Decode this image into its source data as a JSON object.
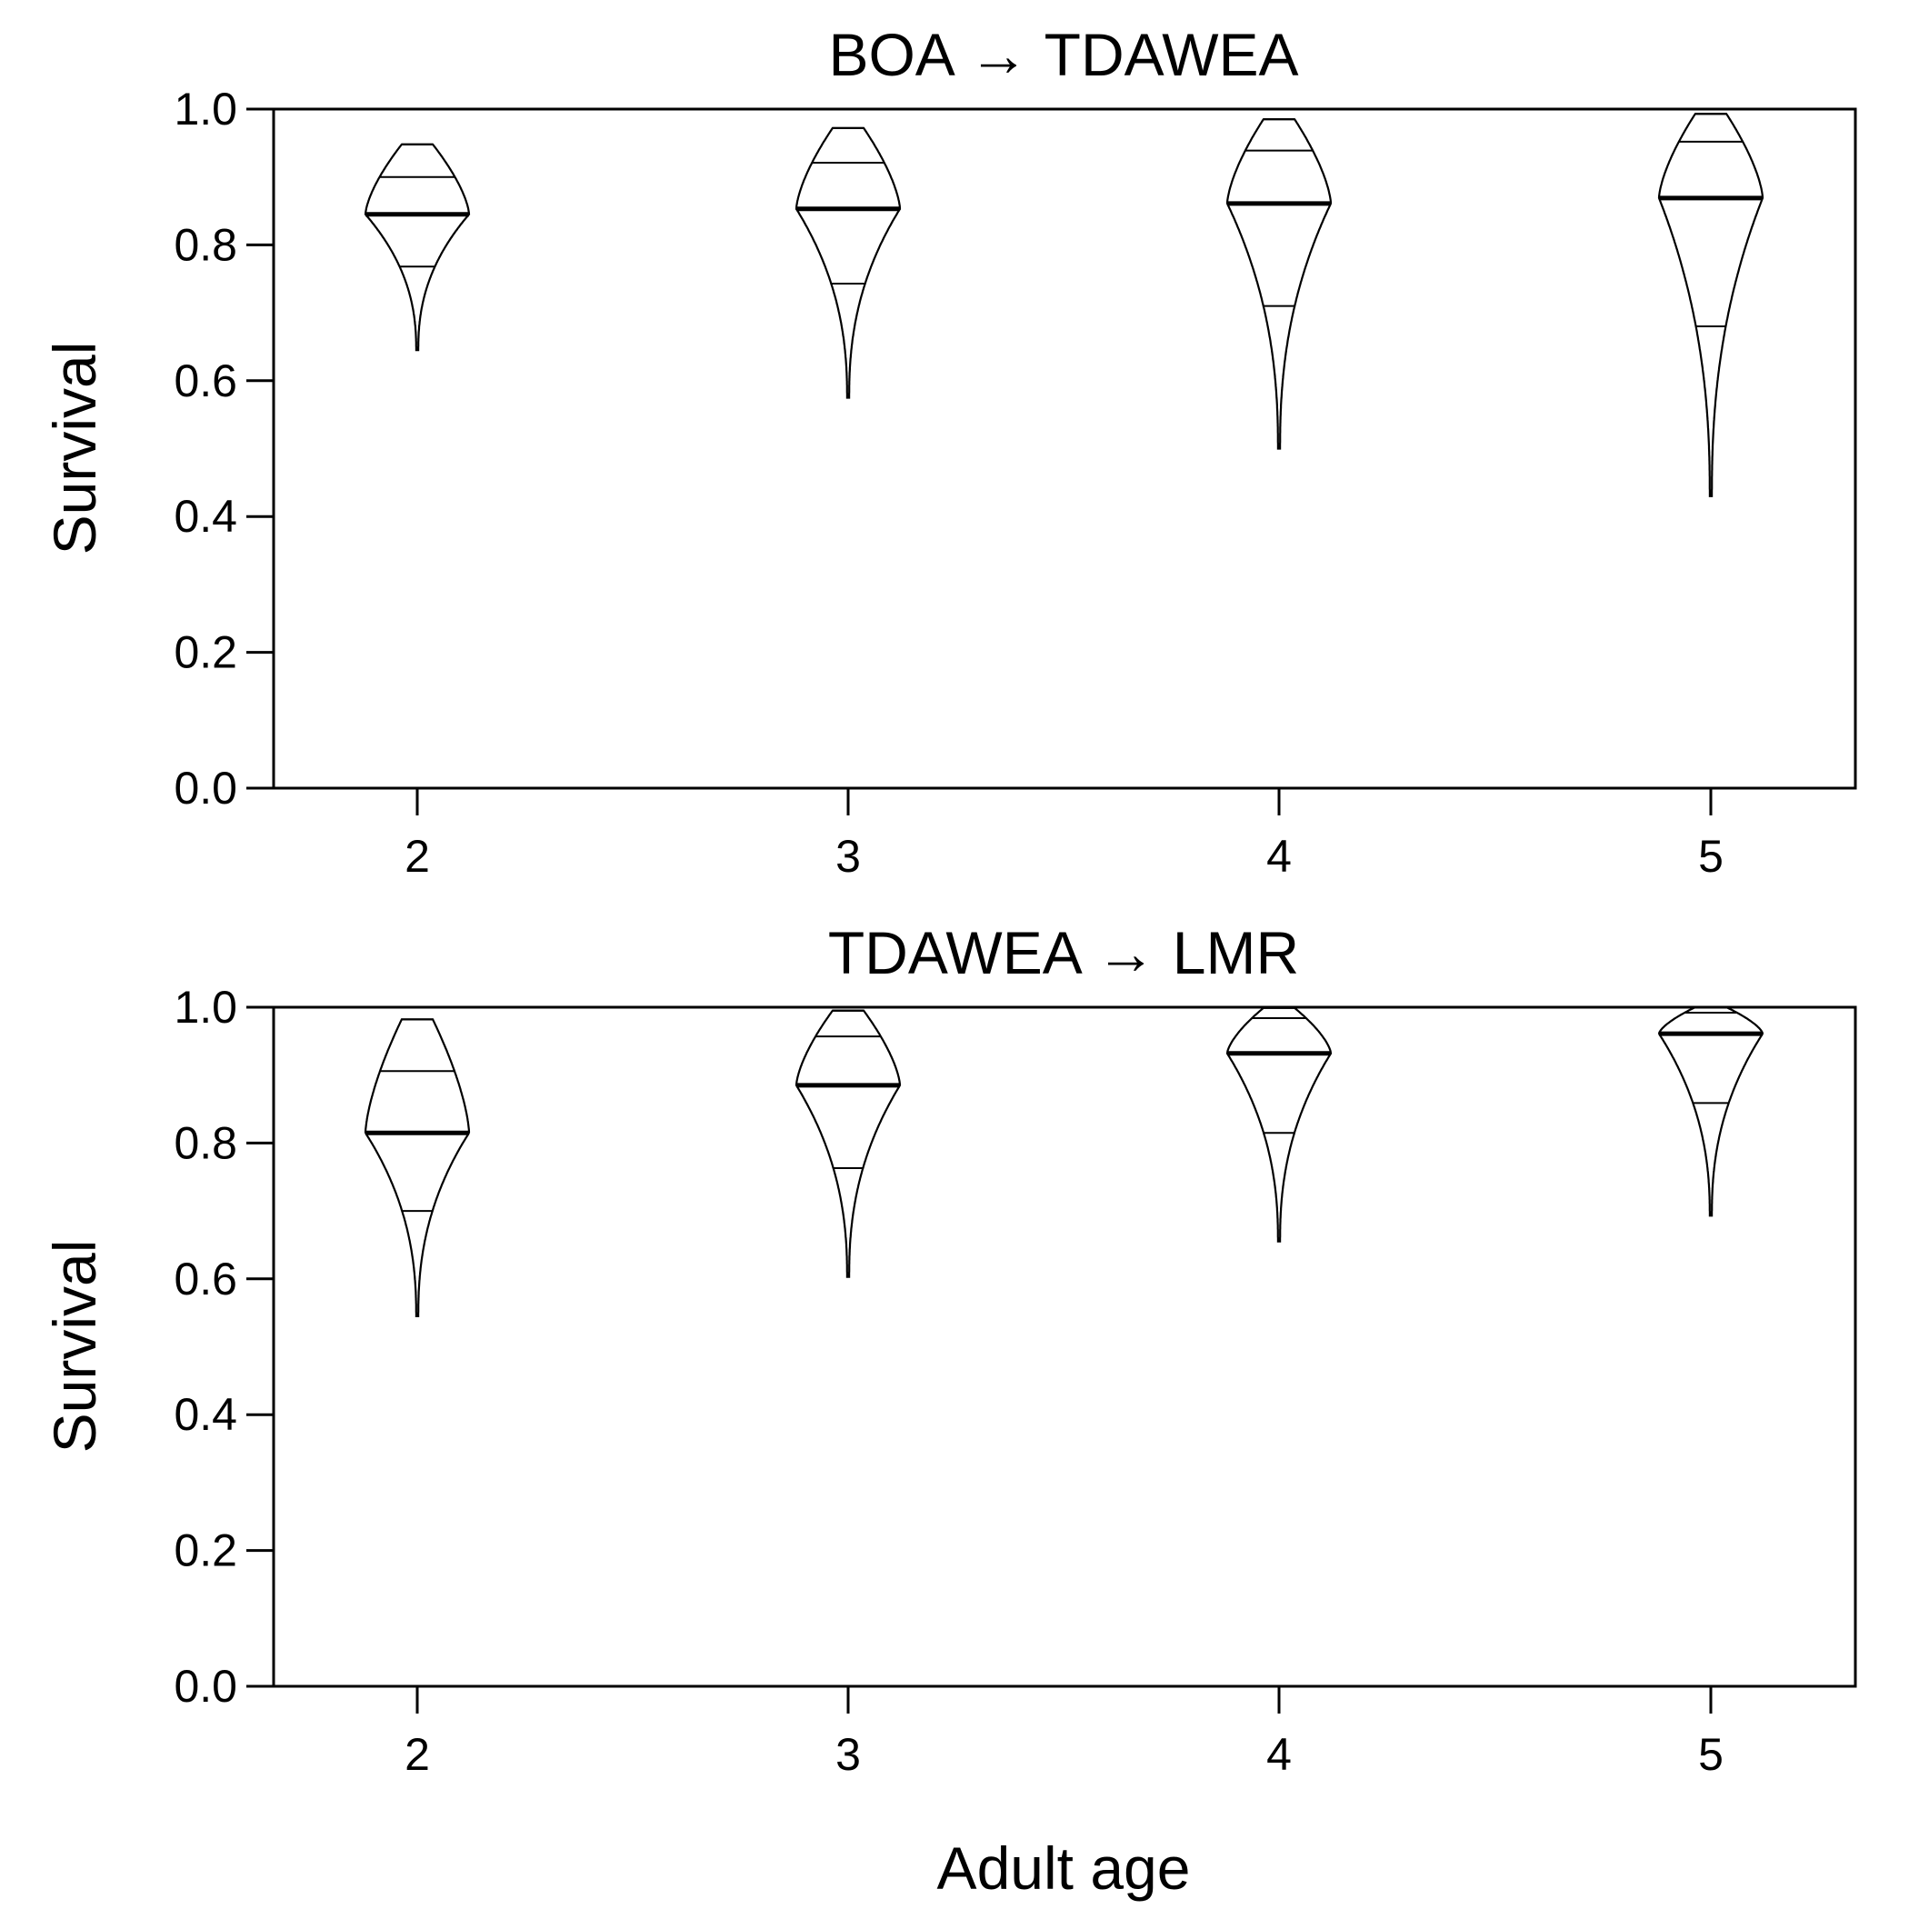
{
  "chart_data": [
    {
      "type": "violin",
      "title": "BOA → TDAWEA",
      "xlabel": "",
      "ylabel": "Survival",
      "ylim": [
        0,
        1
      ],
      "yticks": [
        "0.0",
        "0.2",
        "0.4",
        "0.6",
        "0.8",
        "1.0"
      ],
      "categories": [
        "2",
        "3",
        "4",
        "5"
      ],
      "violins": [
        {
          "x": "2",
          "min": 0.645,
          "lower": 0.768,
          "median": 0.845,
          "upper": 0.9,
          "max": 0.948
        },
        {
          "x": "3",
          "min": 0.575,
          "lower": 0.743,
          "median": 0.853,
          "upper": 0.921,
          "max": 0.972
        },
        {
          "x": "4",
          "min": 0.5,
          "lower": 0.71,
          "median": 0.861,
          "upper": 0.939,
          "max": 0.985
        },
        {
          "x": "5",
          "min": 0.43,
          "lower": 0.68,
          "median": 0.869,
          "upper": 0.952,
          "max": 0.993
        }
      ]
    },
    {
      "type": "violin",
      "title": "TDAWEA → LMR",
      "xlabel": "Adult age",
      "ylabel": "Survival",
      "ylim": [
        0,
        1
      ],
      "yticks": [
        "0.0",
        "0.2",
        "0.4",
        "0.6",
        "0.8",
        "1.0"
      ],
      "categories": [
        "2",
        "3",
        "4",
        "5"
      ],
      "violins": [
        {
          "x": "2",
          "min": 0.545,
          "lower": 0.7,
          "median": 0.815,
          "upper": 0.906,
          "max": 0.982
        },
        {
          "x": "3",
          "min": 0.603,
          "lower": 0.763,
          "median": 0.885,
          "upper": 0.957,
          "max": 0.995
        },
        {
          "x": "4",
          "min": 0.655,
          "lower": 0.815,
          "median": 0.932,
          "upper": 0.984,
          "max": 0.999
        },
        {
          "x": "5",
          "min": 0.693,
          "lower": 0.859,
          "median": 0.961,
          "upper": 0.992,
          "max": 1.0
        }
      ]
    }
  ]
}
